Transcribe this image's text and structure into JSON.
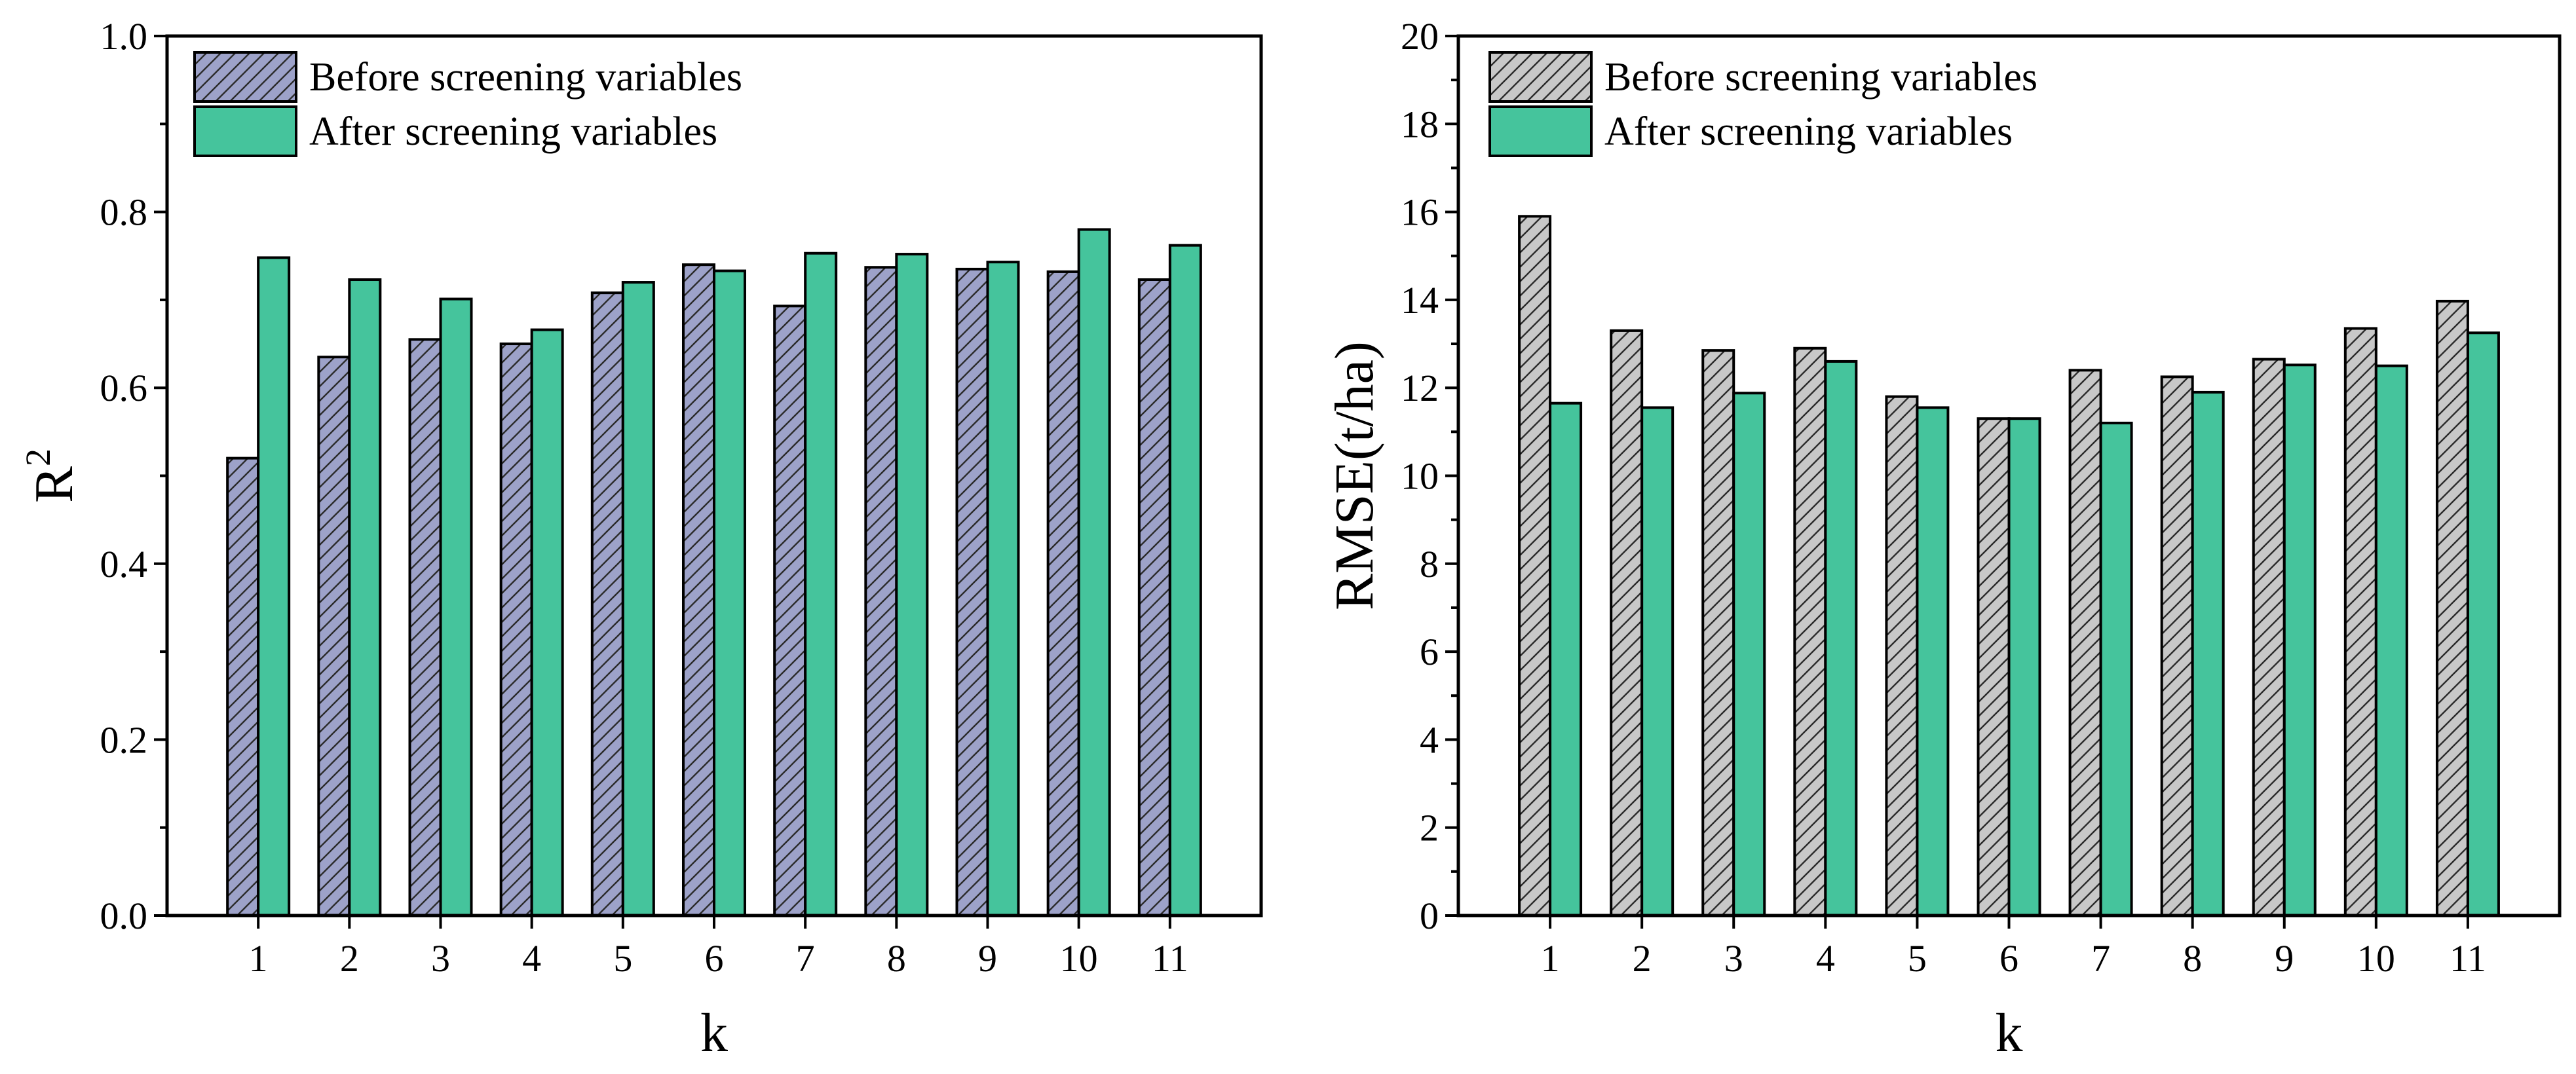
{
  "colors": {
    "before_left": "#9da2c9",
    "before_right": "#c8c8c8",
    "after": "#45c49c",
    "hatch": "#2b2b2b",
    "axis": "#000000"
  },
  "chart_data": [
    {
      "type": "bar",
      "title": "",
      "xlabel": "k",
      "ylabel": "R",
      "ylabel_sup": "2",
      "categories": [
        "1",
        "2",
        "3",
        "4",
        "5",
        "6",
        "7",
        "8",
        "9",
        "10",
        "11"
      ],
      "ylim": [
        0,
        1.0
      ],
      "yticks": [
        0.0,
        0.2,
        0.4,
        0.6,
        0.8,
        1.0
      ],
      "ytick_labels": [
        "0.0",
        "0.2",
        "0.4",
        "0.6",
        "0.8",
        "1.0"
      ],
      "legend": "top-left",
      "series": [
        {
          "name": "Before screening variables",
          "style": "hatched",
          "values": [
            0.52,
            0.635,
            0.655,
            0.65,
            0.708,
            0.74,
            0.693,
            0.737,
            0.735,
            0.732,
            0.723
          ]
        },
        {
          "name": "After screening variables",
          "style": "solid",
          "values": [
            0.748,
            0.723,
            0.701,
            0.666,
            0.72,
            0.733,
            0.753,
            0.752,
            0.743,
            0.78,
            0.762
          ]
        }
      ]
    },
    {
      "type": "bar",
      "title": "",
      "xlabel": "k",
      "ylabel": "RMSE(t/ha)",
      "ylabel_sup": "",
      "categories": [
        "1",
        "2",
        "3",
        "4",
        "5",
        "6",
        "7",
        "8",
        "9",
        "10",
        "11"
      ],
      "ylim": [
        0,
        20
      ],
      "yticks": [
        0,
        2,
        4,
        6,
        8,
        10,
        12,
        14,
        16,
        18,
        20
      ],
      "ytick_labels": [
        "0",
        "2",
        "4",
        "6",
        "8",
        "10",
        "12",
        "14",
        "16",
        "18",
        "20"
      ],
      "legend": "top-left",
      "series": [
        {
          "name": "Before screening variables",
          "style": "hatched",
          "values": [
            15.9,
            13.3,
            12.85,
            12.9,
            11.8,
            11.3,
            12.4,
            12.25,
            12.65,
            13.35,
            13.97
          ]
        },
        {
          "name": "After screening variables",
          "style": "solid",
          "values": [
            11.65,
            11.55,
            11.88,
            12.6,
            11.55,
            11.3,
            11.2,
            11.9,
            12.52,
            12.5,
            13.25
          ]
        }
      ]
    }
  ]
}
